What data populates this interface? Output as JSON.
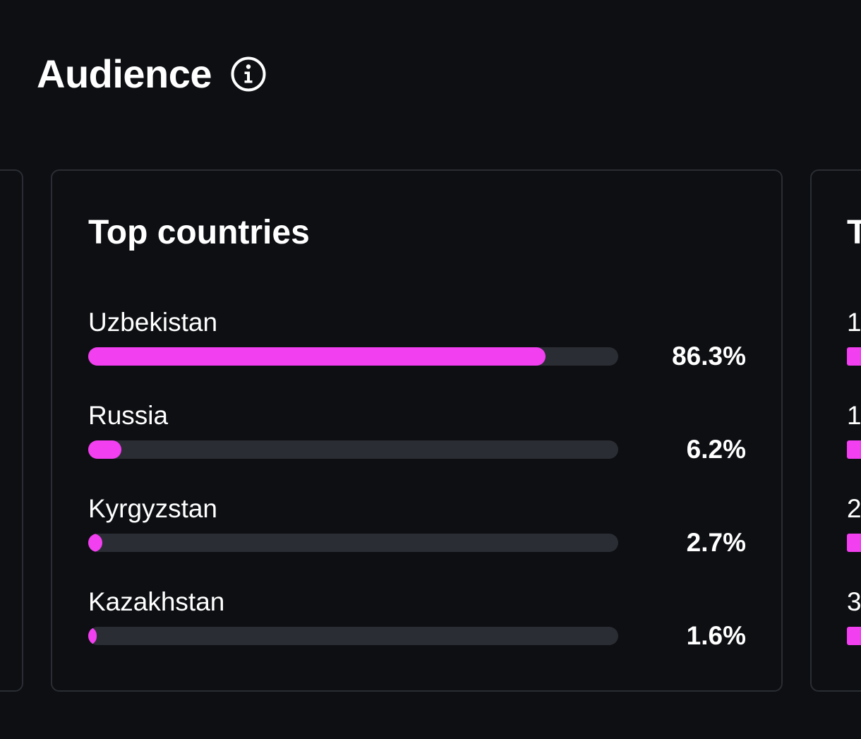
{
  "section": {
    "title": "Audience",
    "info_icon": "info-circle-icon"
  },
  "colors": {
    "background": "#0d0f13",
    "card_border": "#2a2d33",
    "bar_track": "#2b2d34",
    "accent": "#f23ff0",
    "text": "#ffffff"
  },
  "top_countries": {
    "title": "Top countries",
    "items": [
      {
        "label": "Uzbekistan",
        "value": "86.3%",
        "percent": 86.3
      },
      {
        "label": "Russia",
        "value": "6.2%",
        "percent": 6.2
      },
      {
        "label": "Kyrgyzstan",
        "value": "2.7%",
        "percent": 2.7
      },
      {
        "label": "Kazakhstan",
        "value": "1.6%",
        "percent": 1.6
      }
    ]
  },
  "next_card": {
    "title_fragment": "T",
    "label_fragments": [
      "1",
      "1",
      "2",
      "3"
    ]
  }
}
